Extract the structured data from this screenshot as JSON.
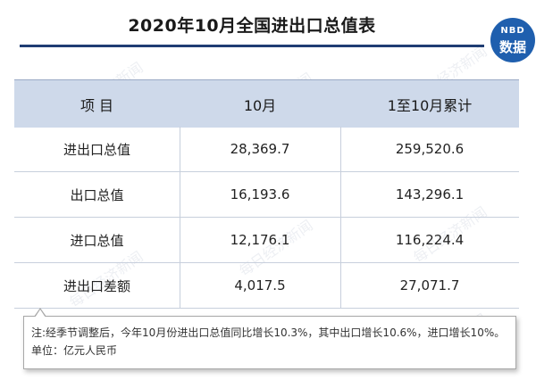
{
  "title": "2020年10月全国进出口总值表",
  "logo": {
    "line1": "NBD",
    "line2": "数据"
  },
  "table": {
    "headers": [
      "项  目",
      "10月",
      "1至10月累计"
    ],
    "rows": [
      {
        "item": "进出口总值",
        "oct": "28,369.7",
        "ytd": "259,520.6"
      },
      {
        "item": "出口总值",
        "oct": "16,193.6",
        "ytd": "143,296.1"
      },
      {
        "item": "进口总值",
        "oct": "12,176.1",
        "ytd": "116,224.4"
      },
      {
        "item": "进出口差额",
        "oct": "4,017.5",
        "ytd": "27,071.7"
      }
    ]
  },
  "note": "注:经季节调整后，今年10月份进出口总值同比增长10.3%，其中出口增长10.6%，进口增长10%。 单位：亿元人民币",
  "watermark_text": "每日经济新闻",
  "colors": {
    "header_bg": "#ced9ea",
    "rule": "#1f3d73",
    "logo": "#1f5fae"
  }
}
